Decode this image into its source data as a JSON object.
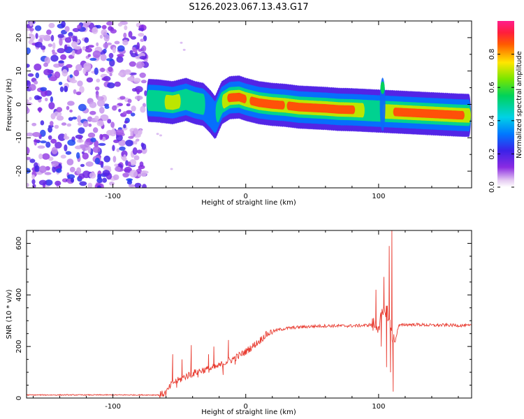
{
  "title": "S126.2023.067.13.43.G17",
  "colors": {
    "snr_line": "#e83a2f",
    "axis": "#000000",
    "background": "#ffffff"
  },
  "chart_data": [
    {
      "type": "heatmap",
      "xlabel": "Height of straight line (km)",
      "ylabel": "Frequency (Hz)",
      "xlim": [
        -165,
        170
      ],
      "ylim": [
        -25,
        25
      ],
      "x_ticks": [
        -100,
        0,
        100
      ],
      "y_ticks": [
        -20,
        -10,
        0,
        10,
        20
      ],
      "colorbar": {
        "label": "Normalized spectral amplitude",
        "range": [
          0,
          1
        ],
        "ticks": [
          0.0,
          0.2,
          0.4,
          0.6,
          0.8
        ],
        "tick_labels": [
          "0.0",
          "0.2",
          "0.4",
          "0.6",
          "0.8"
        ],
        "colormap": "rainbow (purple-blue-cyan-green-yellow-red-magenta)"
      },
      "noise_region_x": [
        -165,
        -75
      ],
      "ridge": {
        "x": [
          -73,
          -65,
          -55,
          -45,
          -38,
          -32,
          -27,
          -23,
          -18,
          -12,
          -5,
          0,
          10,
          20,
          30,
          40,
          50,
          60,
          70,
          80,
          90,
          100,
          110,
          120,
          130,
          140,
          150,
          160,
          168
        ],
        "y": [
          1.2,
          1.0,
          0.5,
          1.5,
          0.5,
          0.0,
          -2.0,
          -4.0,
          0.5,
          2.0,
          2.2,
          1.5,
          0.5,
          0.0,
          -0.3,
          -0.8,
          -1.0,
          -1.2,
          -1.5,
          -1.6,
          -1.8,
          -2.0,
          -2.2,
          -2.4,
          -2.6,
          -2.8,
          -3.0,
          -3.2,
          -3.3
        ],
        "amp": [
          0.5,
          0.6,
          0.7,
          0.6,
          0.55,
          0.45,
          0.4,
          0.4,
          0.6,
          0.85,
          0.9,
          0.8,
          0.85,
          0.9,
          0.8,
          0.9,
          0.85,
          0.9,
          0.9,
          0.85,
          0.6,
          0.55,
          0.8,
          0.9,
          0.9,
          0.9,
          0.9,
          0.9,
          0.7
        ]
      },
      "spike_x": 103,
      "spike_y_range": [
        -8,
        8
      ]
    },
    {
      "type": "line",
      "xlabel": "Height of straight line (km)",
      "ylabel": "SNR (10 * v/v)",
      "xlim": [
        -165,
        170
      ],
      "ylim": [
        0,
        650
      ],
      "x_ticks": [
        -100,
        0,
        100
      ],
      "y_ticks": [
        0,
        200,
        400,
        600
      ],
      "series": [
        {
          "x": [
            -165,
            -140,
            -110,
            -80,
            -65,
            -60,
            -55,
            -50,
            -45,
            -40,
            -35,
            -30,
            -25,
            -20,
            -15,
            -10,
            -5,
            0,
            5,
            10,
            15,
            20,
            25,
            30,
            40,
            50,
            60,
            70,
            80,
            90,
            95,
            100,
            102,
            104,
            106,
            108,
            110,
            112,
            115,
            120,
            130,
            140,
            150,
            160,
            170
          ],
          "y": [
            12,
            12,
            12,
            12,
            12,
            20,
            60,
            70,
            85,
            95,
            105,
            110,
            115,
            125,
            140,
            150,
            165,
            180,
            200,
            220,
            245,
            258,
            265,
            270,
            275,
            278,
            280,
            280,
            280,
            282,
            285,
            280,
            310,
            330,
            350,
            300,
            250,
            210,
            280,
            285,
            285,
            282,
            283,
            282,
            280
          ],
          "spikes": [
            {
              "x": -55,
              "y": 170
            },
            {
              "x": -52,
              "y": 40
            },
            {
              "x": -48,
              "y": 150
            },
            {
              "x": -41,
              "y": 205
            },
            {
              "x": -36,
              "y": 80
            },
            {
              "x": -28,
              "y": 170
            },
            {
              "x": -24,
              "y": 200
            },
            {
              "x": -17,
              "y": 90
            },
            {
              "x": -13,
              "y": 225
            },
            {
              "x": -8,
              "y": 130
            },
            {
              "x": 98,
              "y": 420
            },
            {
              "x": 102,
              "y": 200
            },
            {
              "x": 104,
              "y": 470
            },
            {
              "x": 106,
              "y": 120
            },
            {
              "x": 108,
              "y": 590
            },
            {
              "x": 109,
              "y": 100
            },
            {
              "x": 110,
              "y": 650
            },
            {
              "x": 111,
              "y": 25
            }
          ]
        }
      ]
    }
  ]
}
